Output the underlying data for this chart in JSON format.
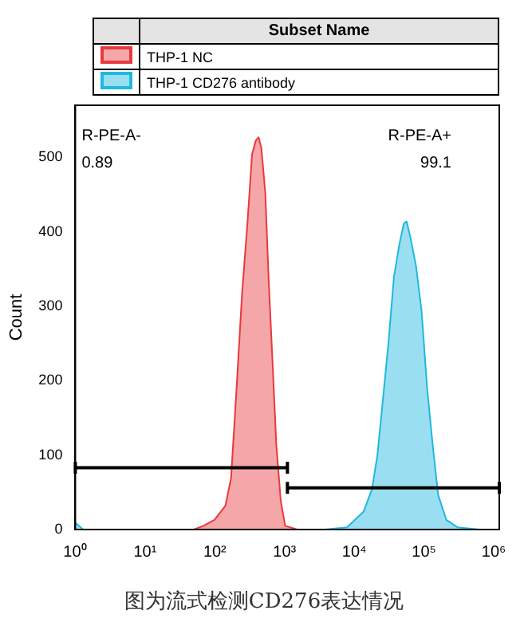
{
  "chart_data": {
    "type": "area",
    "ylabel": "Count",
    "legend_title": "Subset Name",
    "legend": "top",
    "log": "x",
    "xlim": [
      1,
      1200000
    ],
    "xticks": [
      {
        "value": 1,
        "label": "10⁰"
      },
      {
        "value": 10,
        "label": "10¹"
      },
      {
        "value": 100,
        "label": "10²"
      },
      {
        "value": 1000,
        "label": "10³"
      },
      {
        "value": 10000,
        "label": "10⁴"
      },
      {
        "value": 100000,
        "label": "10⁵"
      },
      {
        "value": 1000000,
        "label": "10⁶"
      }
    ],
    "ylim": [
      0,
      570
    ],
    "yticks": [
      0,
      100,
      200,
      300,
      400,
      500
    ],
    "grid": false,
    "series": [
      {
        "name": "THP-1 NC",
        "color": "#e8393f",
        "x": [
          1,
          50,
          69,
          99,
          142,
          171,
          205,
          246,
          295,
          342,
          388,
          425,
          466,
          530,
          590,
          671,
          762,
          882,
          1020,
          1520,
          1200000
        ],
        "values": [
          0,
          0,
          5,
          13,
          32,
          69,
          189,
          317,
          414,
          504,
          523,
          527,
          512,
          452,
          339,
          227,
          114,
          39,
          5,
          0,
          0
        ]
      },
      {
        "name": "THP-1 CD276 antibody",
        "color": "#1fb8e0",
        "x": [
          1,
          1.3,
          3790,
          7870,
          13600,
          17900,
          21400,
          25700,
          30800,
          37000,
          44400,
          51400,
          56300,
          64000,
          76800,
          92100,
          111000,
          133000,
          159000,
          209000,
          301000,
          625000,
          1200000
        ],
        "values": [
          9,
          0,
          0,
          3,
          24,
          54,
          99,
          174,
          249,
          339,
          384,
          411,
          414,
          392,
          354,
          294,
          189,
          114,
          47,
          13,
          3,
          0,
          0
        ]
      },
      {
        "type": "line",
        "color": "#000000",
        "x": [
          1,
          1100
        ],
        "values": [
          83,
          83
        ],
        "errors": [
          8,
          8
        ]
      },
      {
        "type": "line",
        "color": "#000000",
        "x": [
          1100,
          1200000
        ],
        "values": [
          56,
          56
        ],
        "errors": [
          8,
          8
        ]
      }
    ],
    "annotations": [
      "R-PE-A-",
      "0.89",
      "R-PE-A+",
      "99.1",
      "图为流式检测CD276表达情况"
    ]
  }
}
